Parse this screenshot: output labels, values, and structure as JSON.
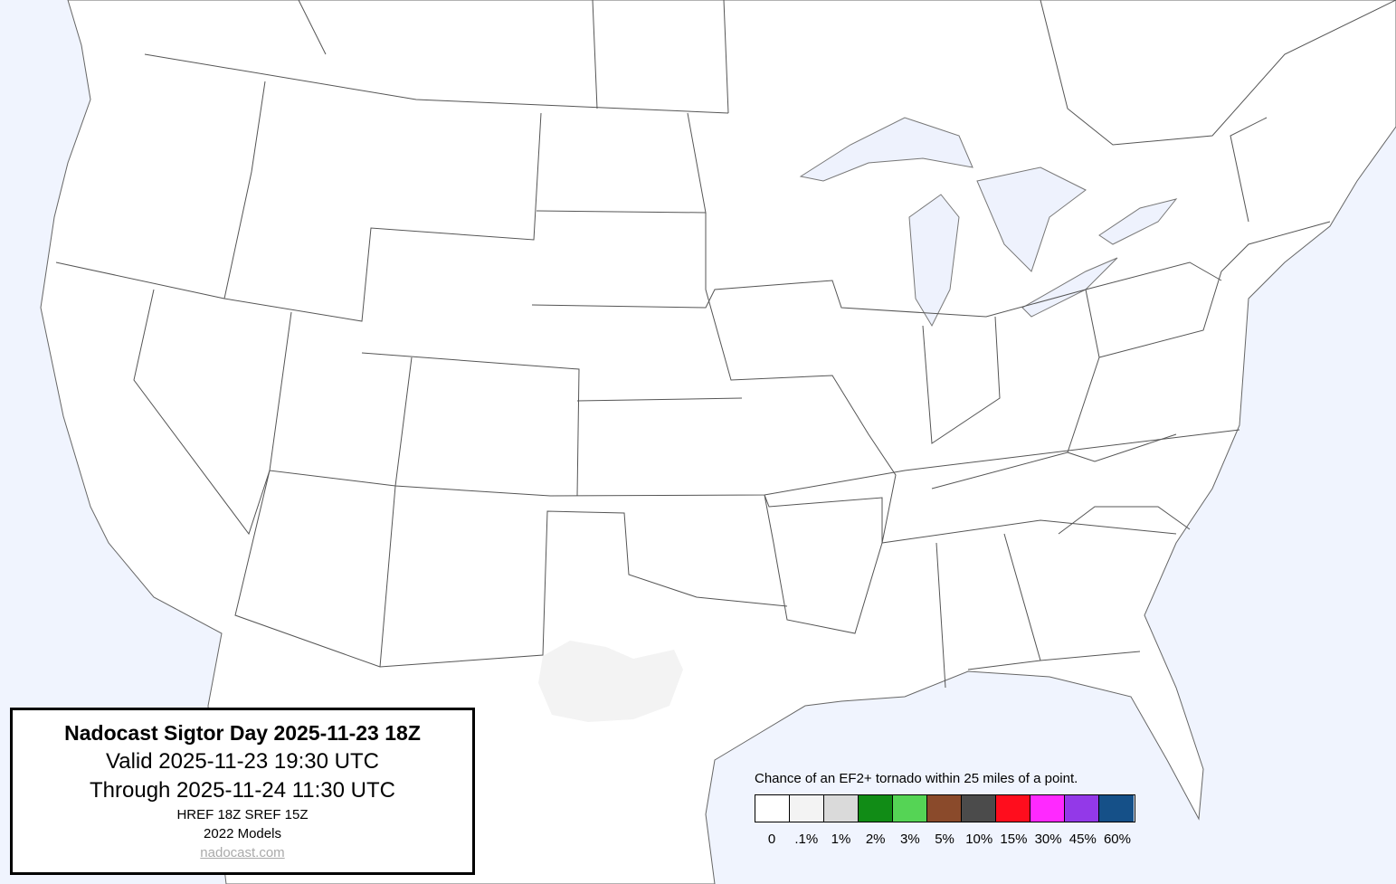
{
  "map": {
    "land_color": "#ffffff",
    "water_color": "#f0f4fe",
    "boundary_color": "#555555",
    "forecast_areas": [
      {
        "category": ".1%",
        "color": "#f3f3f3",
        "region": "west-central Texas"
      }
    ]
  },
  "info": {
    "title": "Nadocast Sigtor Day 2025-11-23 18Z",
    "valid": "Valid 2025-11-23 19:30 UTC",
    "through": "Through 2025-11-24 11:30 UTC",
    "models": "HREF 18Z SREF 15Z",
    "model_version": "2022 Models",
    "link": "nadocast.com"
  },
  "legend": {
    "caption": "Chance of an EF2+ tornado within 25 miles of a point.",
    "items": [
      {
        "label": "0",
        "color": "#ffffff"
      },
      {
        "label": ".1%",
        "color": "#f3f3f3"
      },
      {
        "label": "1%",
        "color": "#dadada"
      },
      {
        "label": "2%",
        "color": "#118c16"
      },
      {
        "label": "3%",
        "color": "#55d455"
      },
      {
        "label": "5%",
        "color": "#8a4a2b"
      },
      {
        "label": "10%",
        "color": "#4b4b4b"
      },
      {
        "label": "15%",
        "color": "#ff0d1d"
      },
      {
        "label": "30%",
        "color": "#ff29ff"
      },
      {
        "label": "45%",
        "color": "#9339e8"
      },
      {
        "label": "60%",
        "color": "#155088"
      }
    ]
  }
}
